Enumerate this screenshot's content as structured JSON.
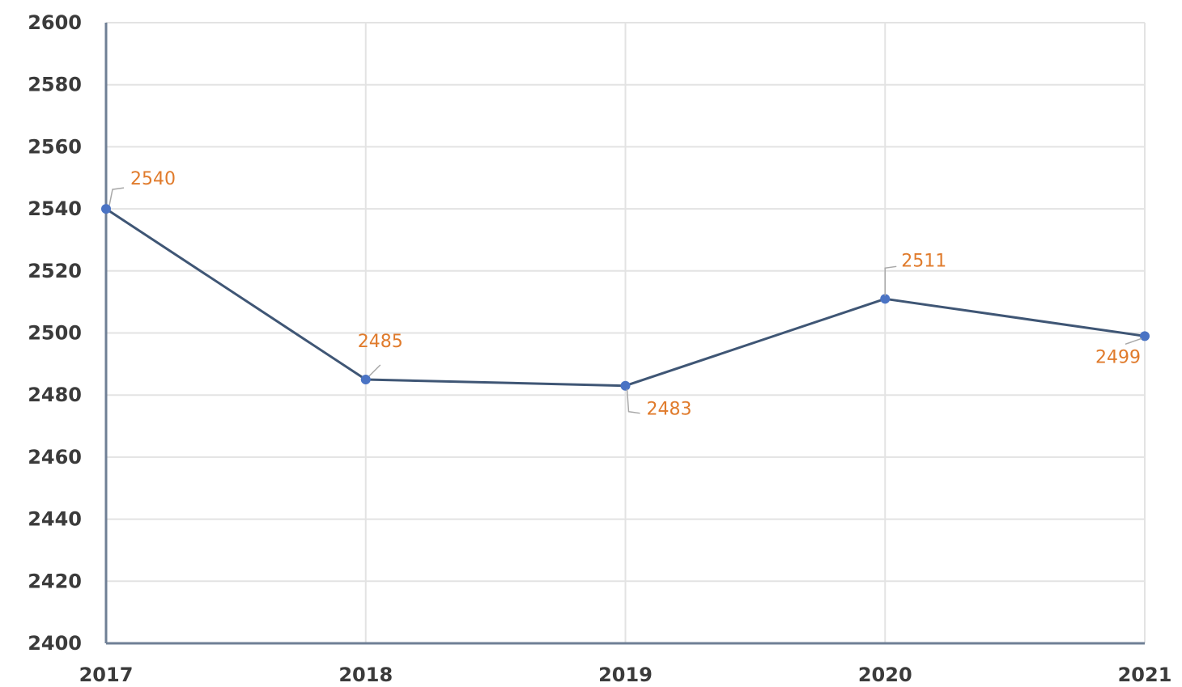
{
  "chart_data": {
    "type": "line",
    "title": "",
    "xlabel": "",
    "ylabel": "",
    "categories": [
      "2017",
      "2018",
      "2019",
      "2020",
      "2021"
    ],
    "series": [
      {
        "values": [
          2540,
          2485,
          2483,
          2511,
          2499
        ]
      }
    ],
    "data_labels": [
      "2540",
      "2485",
      "2483",
      "2511",
      "2499"
    ],
    "ylim": [
      2400,
      2600
    ],
    "y_ticks": [
      "2400",
      "2420",
      "2440",
      "2460",
      "2480",
      "2500",
      "2520",
      "2540",
      "2560",
      "2580",
      "2600"
    ],
    "grid": true,
    "legend": "none",
    "colors": {
      "line": "#3f5675",
      "marker": "#4a73c4",
      "data_label": "#e07b2c",
      "grid": "#e3e3e3",
      "axis": "#6f7f95"
    }
  }
}
